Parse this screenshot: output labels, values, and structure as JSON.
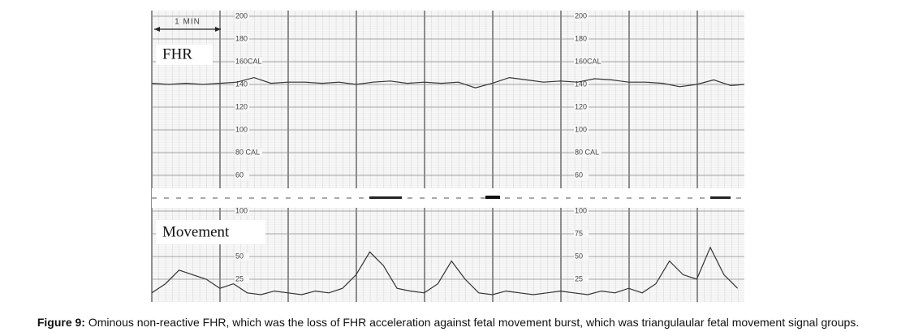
{
  "chart_data": [
    {
      "type": "line",
      "label": "FHR",
      "annotation": "1 MIN",
      "color": "#333333",
      "x": [
        0,
        0.25,
        0.5,
        0.75,
        1,
        1.25,
        1.5,
        1.75,
        2,
        2.25,
        2.5,
        2.75,
        3,
        3.25,
        3.5,
        3.75,
        4,
        4.25,
        4.5,
        4.75,
        5,
        5.25,
        5.5,
        5.75,
        6,
        6.25,
        6.5,
        6.75,
        7,
        7.25,
        7.5,
        7.75,
        8,
        8.25,
        8.5,
        8.7
      ],
      "series": [
        {
          "name": "FHR",
          "color": "#333333",
          "values": [
            141,
            140,
            141,
            140,
            141,
            142,
            146,
            141,
            142,
            142,
            141,
            142,
            140,
            142,
            143,
            141,
            142,
            141,
            142,
            137,
            141,
            146,
            144,
            142,
            143,
            142,
            145,
            144,
            142,
            142,
            141,
            138,
            140,
            144,
            139,
            140
          ]
        }
      ],
      "xlim": [
        0,
        8.7
      ],
      "ylim": [
        50,
        205
      ],
      "yticks": [
        200,
        180,
        {
          "value": 160,
          "label": "160CAL"
        },
        140,
        120,
        100,
        {
          "value": 80,
          "label": "80 CAL"
        },
        60
      ]
    },
    {
      "type": "line",
      "label": "Movement",
      "color": "#333333",
      "x": [
        0,
        0.2,
        0.4,
        0.6,
        0.8,
        1.0,
        1.2,
        1.4,
        1.6,
        1.8,
        2.0,
        2.2,
        2.4,
        2.6,
        2.8,
        3.0,
        3.2,
        3.4,
        3.6,
        3.8,
        4.0,
        4.2,
        4.4,
        4.6,
        4.8,
        5.0,
        5.2,
        5.4,
        5.6,
        5.8,
        6.0,
        6.2,
        6.4,
        6.6,
        6.8,
        7.0,
        7.2,
        7.4,
        7.6,
        7.8,
        8.0,
        8.2,
        8.4,
        8.6
      ],
      "series": [
        {
          "name": "Movement",
          "color": "#333333",
          "values": [
            10,
            20,
            35,
            30,
            25,
            15,
            20,
            10,
            8,
            12,
            10,
            8,
            12,
            10,
            15,
            30,
            55,
            40,
            15,
            12,
            10,
            20,
            45,
            25,
            10,
            8,
            12,
            10,
            8,
            10,
            12,
            10,
            8,
            12,
            10,
            15,
            10,
            20,
            45,
            30,
            25,
            60,
            30,
            15
          ]
        }
      ],
      "xlim": [
        0,
        8.7
      ],
      "ylim": [
        0,
        105
      ],
      "yticks": [
        100,
        75,
        50,
        25
      ]
    }
  ],
  "caption": {
    "label": "Figure 9:",
    "text": " Ominous non-reactive FHR, which was the loss of FHR acceleration against fetal movement burst, which was triangulaular fetal movement signal groups."
  }
}
